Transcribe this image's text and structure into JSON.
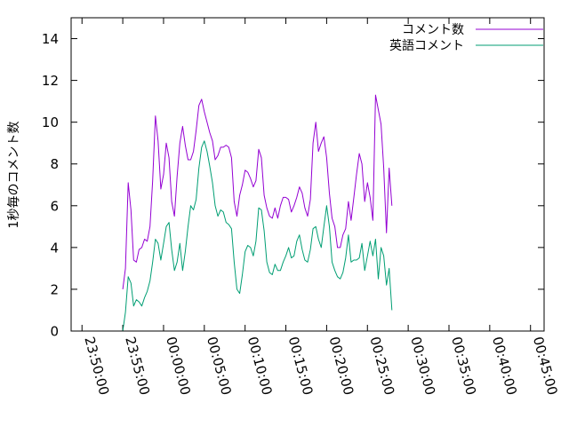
{
  "chart_data": {
    "type": "line",
    "title": "",
    "xlabel": "",
    "ylabel": "1秒毎のコメント数",
    "xlim": [
      "23:48:40",
      "00:46:40"
    ],
    "ylim": [
      0,
      15
    ],
    "yticks": [
      0,
      2,
      4,
      6,
      8,
      10,
      12,
      14
    ],
    "xticks": [
      "23:50:00",
      "23:55:00",
      "00:00:00",
      "00:05:00",
      "00:10:00",
      "00:15:00",
      "00:20:00",
      "00:25:00",
      "00:30:00",
      "00:35:00",
      "00:40:00",
      "00:45:00"
    ],
    "grid": false,
    "legend_position": "top-right",
    "series": [
      {
        "name": "コメント数",
        "color": "#9400d3",
        "points": [
          [
            "23:55:00",
            2.0
          ],
          [
            "23:55:20",
            3.0
          ],
          [
            "23:55:40",
            7.1
          ],
          [
            "23:56:00",
            5.8
          ],
          [
            "23:56:20",
            3.4
          ],
          [
            "23:56:40",
            3.3
          ],
          [
            "23:57:00",
            3.9
          ],
          [
            "23:57:20",
            4.0
          ],
          [
            "23:57:40",
            4.4
          ],
          [
            "23:58:00",
            4.3
          ],
          [
            "23:58:20",
            5.0
          ],
          [
            "23:58:40",
            7.2
          ],
          [
            "23:59:00",
            10.3
          ],
          [
            "23:59:20",
            9.1
          ],
          [
            "23:59:40",
            6.8
          ],
          [
            "00:00:00",
            7.5
          ],
          [
            "00:00:20",
            9.0
          ],
          [
            "00:00:40",
            8.3
          ],
          [
            "00:01:00",
            6.2
          ],
          [
            "00:01:20",
            5.5
          ],
          [
            "00:01:40",
            7.4
          ],
          [
            "00:02:00",
            9.0
          ],
          [
            "00:02:20",
            9.8
          ],
          [
            "00:02:40",
            8.9
          ],
          [
            "00:03:00",
            8.2
          ],
          [
            "00:03:20",
            8.2
          ],
          [
            "00:03:40",
            8.6
          ],
          [
            "00:04:00",
            9.6
          ],
          [
            "00:04:20",
            10.8
          ],
          [
            "00:04:40",
            11.1
          ],
          [
            "00:05:00",
            10.5
          ],
          [
            "00:05:20",
            10.0
          ],
          [
            "00:05:40",
            9.5
          ],
          [
            "00:06:00",
            9.1
          ],
          [
            "00:06:20",
            8.2
          ],
          [
            "00:06:40",
            8.4
          ],
          [
            "00:07:00",
            8.8
          ],
          [
            "00:07:20",
            8.8
          ],
          [
            "00:07:40",
            8.9
          ],
          [
            "00:08:00",
            8.8
          ],
          [
            "00:08:20",
            8.3
          ],
          [
            "00:08:40",
            6.2
          ],
          [
            "00:09:00",
            5.5
          ],
          [
            "00:09:20",
            6.5
          ],
          [
            "00:09:40",
            7.0
          ],
          [
            "00:10:00",
            7.7
          ],
          [
            "00:10:20",
            7.6
          ],
          [
            "00:10:40",
            7.3
          ],
          [
            "00:11:00",
            6.9
          ],
          [
            "00:11:20",
            7.2
          ],
          [
            "00:11:40",
            8.7
          ],
          [
            "00:12:00",
            8.3
          ],
          [
            "00:12:20",
            6.5
          ],
          [
            "00:12:40",
            5.9
          ],
          [
            "00:13:00",
            5.5
          ],
          [
            "00:13:20",
            5.4
          ],
          [
            "00:13:40",
            5.9
          ],
          [
            "00:14:00",
            5.4
          ],
          [
            "00:14:20",
            6.0
          ],
          [
            "00:14:40",
            6.4
          ],
          [
            "00:15:00",
            6.4
          ],
          [
            "00:15:20",
            6.3
          ],
          [
            "00:15:40",
            5.7
          ],
          [
            "00:16:00",
            6.0
          ],
          [
            "00:16:20",
            6.4
          ],
          [
            "00:16:40",
            6.9
          ],
          [
            "00:17:00",
            6.6
          ],
          [
            "00:17:20",
            5.9
          ],
          [
            "00:17:40",
            5.5
          ],
          [
            "00:18:00",
            6.3
          ],
          [
            "00:18:20",
            9.0
          ],
          [
            "00:18:40",
            10.0
          ],
          [
            "00:19:00",
            8.6
          ],
          [
            "00:19:20",
            9.0
          ],
          [
            "00:19:40",
            9.3
          ],
          [
            "00:20:00",
            8.3
          ],
          [
            "00:20:20",
            6.6
          ],
          [
            "00:20:40",
            5.4
          ],
          [
            "00:21:00",
            5.0
          ],
          [
            "00:21:20",
            4.0
          ],
          [
            "00:21:40",
            4.0
          ],
          [
            "00:22:00",
            4.6
          ],
          [
            "00:22:20",
            4.9
          ],
          [
            "00:22:40",
            6.2
          ],
          [
            "00:23:00",
            5.3
          ],
          [
            "00:23:20",
            6.4
          ],
          [
            "00:23:40",
            7.5
          ],
          [
            "00:24:00",
            8.5
          ],
          [
            "00:24:20",
            8.0
          ],
          [
            "00:24:40",
            6.2
          ],
          [
            "00:25:00",
            7.1
          ],
          [
            "00:25:20",
            6.4
          ],
          [
            "00:25:40",
            5.3
          ],
          [
            "00:26:00",
            11.3
          ],
          [
            "00:26:20",
            10.6
          ],
          [
            "00:26:40",
            9.9
          ],
          [
            "00:27:00",
            7.8
          ],
          [
            "00:27:20",
            4.7
          ],
          [
            "00:27:40",
            7.8
          ],
          [
            "00:28:00",
            6.0
          ]
        ]
      },
      {
        "name": "英語コメント",
        "color": "#009e73",
        "points": [
          [
            "23:55:00",
            0.0
          ],
          [
            "23:55:20",
            0.9
          ],
          [
            "23:55:40",
            2.6
          ],
          [
            "23:56:00",
            2.3
          ],
          [
            "23:56:20",
            1.2
          ],
          [
            "23:56:40",
            1.5
          ],
          [
            "23:57:00",
            1.4
          ],
          [
            "23:57:20",
            1.2
          ],
          [
            "23:57:40",
            1.6
          ],
          [
            "23:58:00",
            1.9
          ],
          [
            "23:58:20",
            2.4
          ],
          [
            "23:58:40",
            3.3
          ],
          [
            "23:59:00",
            4.4
          ],
          [
            "23:59:20",
            4.2
          ],
          [
            "23:59:40",
            3.4
          ],
          [
            "00:00:00",
            4.2
          ],
          [
            "00:00:20",
            5.0
          ],
          [
            "00:00:40",
            5.2
          ],
          [
            "00:01:00",
            3.9
          ],
          [
            "00:01:20",
            2.9
          ],
          [
            "00:01:40",
            3.3
          ],
          [
            "00:02:00",
            4.2
          ],
          [
            "00:02:20",
            2.9
          ],
          [
            "00:02:40",
            3.8
          ],
          [
            "00:03:00",
            5.0
          ],
          [
            "00:03:20",
            6.0
          ],
          [
            "00:03:40",
            5.8
          ],
          [
            "00:04:00",
            6.3
          ],
          [
            "00:04:20",
            7.8
          ],
          [
            "00:04:40",
            8.8
          ],
          [
            "00:05:00",
            9.1
          ],
          [
            "00:05:20",
            8.6
          ],
          [
            "00:05:40",
            7.9
          ],
          [
            "00:06:00",
            7.1
          ],
          [
            "00:06:20",
            6.0
          ],
          [
            "00:06:40",
            5.5
          ],
          [
            "00:07:00",
            5.8
          ],
          [
            "00:07:20",
            5.7
          ],
          [
            "00:07:40",
            5.2
          ],
          [
            "00:08:00",
            5.1
          ],
          [
            "00:08:20",
            4.9
          ],
          [
            "00:08:40",
            3.3
          ],
          [
            "00:09:00",
            2.0
          ],
          [
            "00:09:20",
            1.8
          ],
          [
            "00:09:40",
            2.7
          ],
          [
            "00:10:00",
            3.8
          ],
          [
            "00:10:20",
            4.1
          ],
          [
            "00:10:40",
            4.0
          ],
          [
            "00:11:00",
            3.6
          ],
          [
            "00:11:20",
            4.3
          ],
          [
            "00:11:40",
            5.9
          ],
          [
            "00:12:00",
            5.8
          ],
          [
            "00:12:20",
            4.8
          ],
          [
            "00:12:40",
            3.3
          ],
          [
            "00:13:00",
            2.8
          ],
          [
            "00:13:20",
            2.7
          ],
          [
            "00:13:40",
            3.2
          ],
          [
            "00:14:00",
            2.9
          ],
          [
            "00:14:20",
            2.9
          ],
          [
            "00:14:40",
            3.3
          ],
          [
            "00:15:00",
            3.6
          ],
          [
            "00:15:20",
            4.0
          ],
          [
            "00:15:40",
            3.5
          ],
          [
            "00:16:00",
            3.6
          ],
          [
            "00:16:20",
            4.3
          ],
          [
            "00:16:40",
            4.6
          ],
          [
            "00:17:00",
            3.9
          ],
          [
            "00:17:20",
            3.4
          ],
          [
            "00:17:40",
            3.3
          ],
          [
            "00:18:00",
            3.9
          ],
          [
            "00:18:20",
            4.9
          ],
          [
            "00:18:40",
            5.0
          ],
          [
            "00:19:00",
            4.4
          ],
          [
            "00:19:20",
            4.0
          ],
          [
            "00:19:40",
            5.0
          ],
          [
            "00:20:00",
            6.0
          ],
          [
            "00:20:20",
            5.0
          ],
          [
            "00:20:40",
            3.3
          ],
          [
            "00:21:00",
            2.9
          ],
          [
            "00:21:20",
            2.6
          ],
          [
            "00:21:40",
            2.5
          ],
          [
            "00:22:00",
            2.8
          ],
          [
            "00:22:20",
            3.5
          ],
          [
            "00:22:40",
            4.6
          ],
          [
            "00:23:00",
            3.3
          ],
          [
            "00:23:20",
            3.4
          ],
          [
            "00:23:40",
            3.4
          ],
          [
            "00:24:00",
            3.5
          ],
          [
            "00:24:20",
            4.2
          ],
          [
            "00:24:40",
            2.9
          ],
          [
            "00:25:00",
            3.6
          ],
          [
            "00:25:20",
            4.3
          ],
          [
            "00:25:40",
            3.6
          ],
          [
            "00:26:00",
            4.4
          ],
          [
            "00:26:20",
            2.5
          ],
          [
            "00:26:40",
            4.0
          ],
          [
            "00:27:00",
            3.6
          ],
          [
            "00:27:20",
            2.2
          ],
          [
            "00:27:40",
            3.0
          ],
          [
            "00:28:00",
            1.0
          ]
        ]
      }
    ]
  }
}
